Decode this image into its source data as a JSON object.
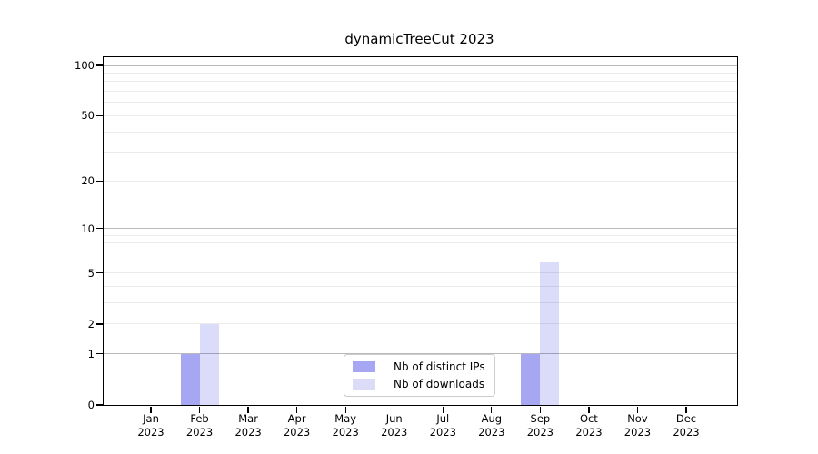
{
  "chart_data": {
    "type": "bar",
    "title": "dynamicTreeCut 2023",
    "categories": [
      {
        "month": "Jan",
        "year": "2023"
      },
      {
        "month": "Feb",
        "year": "2023"
      },
      {
        "month": "Mar",
        "year": "2023"
      },
      {
        "month": "Apr",
        "year": "2023"
      },
      {
        "month": "May",
        "year": "2023"
      },
      {
        "month": "Jun",
        "year": "2023"
      },
      {
        "month": "Jul",
        "year": "2023"
      },
      {
        "month": "Aug",
        "year": "2023"
      },
      {
        "month": "Sep",
        "year": "2023"
      },
      {
        "month": "Oct",
        "year": "2023"
      },
      {
        "month": "Nov",
        "year": "2023"
      },
      {
        "month": "Dec",
        "year": "2023"
      }
    ],
    "series": [
      {
        "name": "Nb of distinct IPs",
        "color": "rgba(0,0,220,0.35)",
        "legend_hex": "#a6a6f2",
        "values": [
          0,
          1,
          0,
          0,
          0,
          0,
          0,
          0,
          1,
          0,
          0,
          0
        ]
      },
      {
        "name": "Nb of downloads",
        "color": "rgba(0,0,220,0.14)",
        "legend_hex": "#dcdcf8",
        "values": [
          0,
          2,
          0,
          0,
          0,
          0,
          0,
          0,
          6,
          0,
          0,
          0
        ]
      }
    ],
    "y_axis": {
      "scale": "log10(1+v)",
      "ticks": [
        0,
        1,
        2,
        5,
        10,
        20,
        50,
        100
      ],
      "minor_ticks": [
        3,
        4,
        6,
        7,
        8,
        9,
        30,
        40,
        60,
        70,
        80,
        90
      ],
      "decade_ticks": [
        1,
        10,
        100
      ],
      "max": 112
    },
    "grid": {
      "decade_color": "#b9b9b9",
      "minor_color": "#ebebeb"
    },
    "legend_position": "bottom-center-inside"
  }
}
